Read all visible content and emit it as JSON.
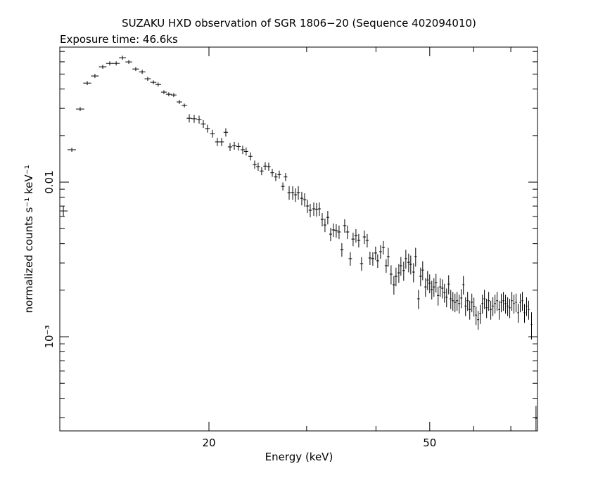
{
  "chart_data": {
    "type": "errorbar",
    "title": "SUZAKU HXD observation of SGR 1806−20 (Sequence 402094010)",
    "subtitle": "Exposure time: 46.6ks",
    "x_label": "Energy (keV)",
    "y_label": "normalized counts s⁻¹ keV⁻¹",
    "x_log": true,
    "y_log": true,
    "xlim": [
      10.77,
      78.2
    ],
    "ylim": [
      0.000246,
      0.0747
    ],
    "xticks": [
      20,
      50
    ],
    "xminor_ticks": [
      30,
      40,
      60,
      70
    ],
    "yticks": [
      0.01,
      {
        "value": 0.001,
        "label": "10⁻³"
      }
    ],
    "yminor_ticks": [
      0.0003,
      0.0004,
      0.0005,
      0.0006,
      0.0007,
      0.0008,
      0.0009,
      0.002,
      0.003,
      0.004,
      0.005,
      0.006,
      0.007,
      0.008,
      0.009,
      0.02,
      0.03,
      0.04,
      0.05,
      0.06,
      0.07
    ],
    "color": "#000000",
    "x": [
      10.93,
      11.32,
      11.72,
      12.07,
      12.46,
      12.87,
      13.25,
      13.61,
      13.97,
      14.34,
      14.76,
      15.16,
      15.51,
      15.88,
      16.2,
      16.59,
      16.93,
      17.28,
      17.69,
      18.06,
      18.43,
      18.81,
      19.2,
      19.54,
      19.88,
      20.29,
      20.71,
      21.08,
      21.45,
      21.83,
      22.22,
      22.61,
      23.01,
      23.34,
      23.76,
      24.18,
      24.53,
      24.89,
      25.26,
      25.63,
      26.01,
      26.39,
      26.78,
      27.18,
      27.49,
      27.9,
      28.31,
      28.64,
      28.98,
      29.4,
      29.75,
      30.1,
      30.45,
      30.9,
      31.26,
      31.63,
      32.0,
      32.37,
      32.75,
      33.14,
      33.53,
      33.92,
      34.32,
      34.72,
      35.13,
      35.54,
      35.96,
      36.38,
      36.81,
      37.24,
      37.68,
      38.12,
      38.57,
      39.02,
      39.48,
      39.94,
      40.29,
      40.77,
      41.24,
      41.73,
      42.09,
      42.59,
      43.09,
      43.47,
      43.98,
      44.36,
      44.88,
      45.28,
      45.81,
      46.21,
      46.75,
      47.16,
      47.72,
      48.14,
      48.56,
      49.13,
      49.56,
      49.99,
      50.43,
      50.88,
      51.32,
      51.77,
      52.23,
      52.69,
      53.15,
      53.62,
      54.09,
      54.56,
      55.04,
      55.53,
      56.01,
      56.51,
      57.0,
      57.5,
      58.01,
      58.52,
      59.03,
      59.55,
      60.07,
      60.6,
      61.13,
      61.67,
      62.21,
      62.75,
      63.31,
      63.86,
      64.42,
      64.99,
      65.56,
      66.13,
      66.71,
      67.3,
      67.89,
      68.49,
      69.09,
      69.69,
      70.31,
      70.92,
      71.55,
      72.17,
      72.81,
      73.45,
      74.09,
      74.74,
      75.4,
      76.28,
      77.72
    ],
    "values": [
      0.00651,
      0.0162,
      0.0297,
      0.0437,
      0.0486,
      0.0557,
      0.0586,
      0.0586,
      0.0638,
      0.0599,
      0.0539,
      0.0517,
      0.0466,
      0.0442,
      0.0428,
      0.0382,
      0.037,
      0.0366,
      0.033,
      0.0313,
      0.0259,
      0.0257,
      0.0254,
      0.0238,
      0.0222,
      0.0206,
      0.0182,
      0.0182,
      0.021,
      0.0169,
      0.0172,
      0.017,
      0.0162,
      0.0158,
      0.0147,
      0.013,
      0.0126,
      0.0118,
      0.0127,
      0.0126,
      0.0115,
      0.0108,
      0.0112,
      0.00939,
      0.0108,
      0.00855,
      0.00855,
      0.00828,
      0.00855,
      0.00786,
      0.0077,
      0.00701,
      0.00658,
      0.00672,
      0.00665,
      0.00672,
      0.00574,
      0.00528,
      0.00592,
      0.00461,
      0.00491,
      0.00486,
      0.00476,
      0.00366,
      0.00523,
      0.00476,
      0.0032,
      0.00428,
      0.00451,
      0.0042,
      0.00297,
      0.00442,
      0.0042,
      0.00323,
      0.0032,
      0.00348,
      0.0031,
      0.00355,
      0.00378,
      0.00288,
      0.0033,
      0.00254,
      0.00217,
      0.00246,
      0.00259,
      0.00288,
      0.00268,
      0.0032,
      0.00303,
      0.00294,
      0.00262,
      0.0033,
      0.00176,
      0.00246,
      0.0027,
      0.0021,
      0.00233,
      0.00222,
      0.00202,
      0.0021,
      0.00224,
      0.00185,
      0.0021,
      0.00206,
      0.00193,
      0.0018,
      0.00219,
      0.00176,
      0.00171,
      0.00167,
      0.00171,
      0.00164,
      0.00178,
      0.00217,
      0.00158,
      0.00171,
      0.0015,
      0.00167,
      0.00157,
      0.00138,
      0.00129,
      0.00141,
      0.00164,
      0.00176,
      0.00154,
      0.00171,
      0.0015,
      0.00158,
      0.00164,
      0.00171,
      0.0015,
      0.00167,
      0.00171,
      0.00164,
      0.00158,
      0.00154,
      0.00171,
      0.00164,
      0.00167,
      0.00143,
      0.00167,
      0.00171,
      0.00143,
      0.00158,
      0.0015,
      0.0012,
      0.000297
    ],
    "yerr": [
      0.0005,
      0.0005,
      0.0009,
      0.0013,
      0.0015,
      0.0017,
      0.0018,
      0.0018,
      0.0019,
      0.0018,
      0.0016,
      0.0016,
      0.0014,
      0.0013,
      0.0013,
      0.0011,
      0.0011,
      0.0011,
      0.001,
      0.0009,
      0.0016,
      0.0015,
      0.0015,
      0.0014,
      0.0013,
      0.0012,
      0.0011,
      0.0011,
      0.0013,
      0.001,
      0.001,
      0.001,
      0.001,
      0.00095,
      0.00088,
      0.00078,
      0.00076,
      0.00071,
      0.00076,
      0.00076,
      0.00069,
      0.00065,
      0.00067,
      0.00056,
      0.00065,
      0.00086,
      0.00086,
      0.00083,
      0.00086,
      0.00079,
      0.00077,
      0.0007,
      0.00066,
      0.00067,
      0.00067,
      0.00067,
      0.00057,
      0.00053,
      0.00059,
      0.00046,
      0.00049,
      0.00049,
      0.00048,
      0.00037,
      0.00052,
      0.00048,
      0.00032,
      0.00043,
      0.00045,
      0.00042,
      0.0003,
      0.00044,
      0.00042,
      0.00032,
      0.00032,
      0.00035,
      0.00031,
      0.00036,
      0.00038,
      0.00029,
      0.00046,
      0.00036,
      0.0003,
      0.00034,
      0.00036,
      0.0004,
      0.00038,
      0.00045,
      0.00042,
      0.00041,
      0.00037,
      0.00046,
      0.00025,
      0.00034,
      0.00038,
      0.00029,
      0.00033,
      0.00031,
      0.00028,
      0.00029,
      0.00031,
      0.00026,
      0.00029,
      0.00029,
      0.00027,
      0.00025,
      0.00031,
      0.00025,
      0.00024,
      0.00023,
      0.00024,
      0.00023,
      0.00025,
      0.0003,
      0.00022,
      0.00024,
      0.00021,
      0.00023,
      0.00022,
      0.00019,
      0.00018,
      0.0002,
      0.00023,
      0.00025,
      0.00022,
      0.00024,
      0.00021,
      0.00022,
      0.00023,
      0.00024,
      0.00021,
      0.00023,
      0.00024,
      0.00023,
      0.00022,
      0.00022,
      0.00024,
      0.00023,
      0.00023,
      0.0002,
      0.00023,
      0.00024,
      0.0002,
      0.00022,
      0.00021,
      0.00024,
      6e-05
    ],
    "xerr": [
      0.2,
      0.2,
      0.2,
      0.2,
      0.2,
      0.2,
      0.2,
      0.2,
      0.2,
      0.2,
      0.2,
      0.2,
      0.2,
      0.2,
      0.2,
      0.2,
      0.2,
      0.2,
      0.2,
      0.2,
      0.2,
      0.2,
      0.2,
      0.2,
      0.2,
      0.2,
      0.2,
      0.2,
      0.2,
      0.2,
      0.2,
      0.2,
      0.2,
      0.2,
      0.2,
      0.2,
      0.2,
      0.2,
      0.2,
      0.2,
      0.2,
      0.2,
      0.2,
      0.2,
      0.2,
      0.2,
      0.2,
      0.2,
      0.2,
      0.2,
      0.2,
      0.2,
      0.2,
      0.2,
      0.2,
      0.2,
      0.2,
      0.2,
      0.2,
      0.2,
      0.25,
      0.25,
      0.25,
      0.25,
      0.25,
      0.25,
      0.25,
      0.25,
      0.25,
      0.25,
      0.25,
      0.25,
      0.25,
      0.25,
      0.25,
      0.25,
      0.25,
      0.25,
      0.25,
      0.25,
      0.25,
      0.25,
      0.25,
      0.25,
      0.25,
      0.25,
      0.25,
      0.25,
      0.25,
      0.25,
      0.25,
      0.25,
      0.25,
      0.25,
      0.25,
      0.25,
      0.25,
      0.25,
      0.25,
      0.25,
      0.25,
      0.25,
      0.25,
      0.25,
      0.25,
      0.25,
      0.25,
      0.25,
      0.25,
      0.25,
      0.25,
      0.25,
      0.25,
      0.25,
      0.25,
      0.25,
      0.25,
      0.25,
      0.25,
      0.25,
      0.25,
      0.25,
      0.25,
      0.25,
      0.25,
      0.25,
      0.25,
      0.25,
      0.25,
      0.25,
      0.25,
      0.25,
      0.25,
      0.25,
      0.25,
      0.25,
      0.25,
      0.25,
      0.25,
      0.25,
      0.25,
      0.25,
      0.25,
      0.25,
      0.25,
      0.25,
      0.25
    ]
  }
}
